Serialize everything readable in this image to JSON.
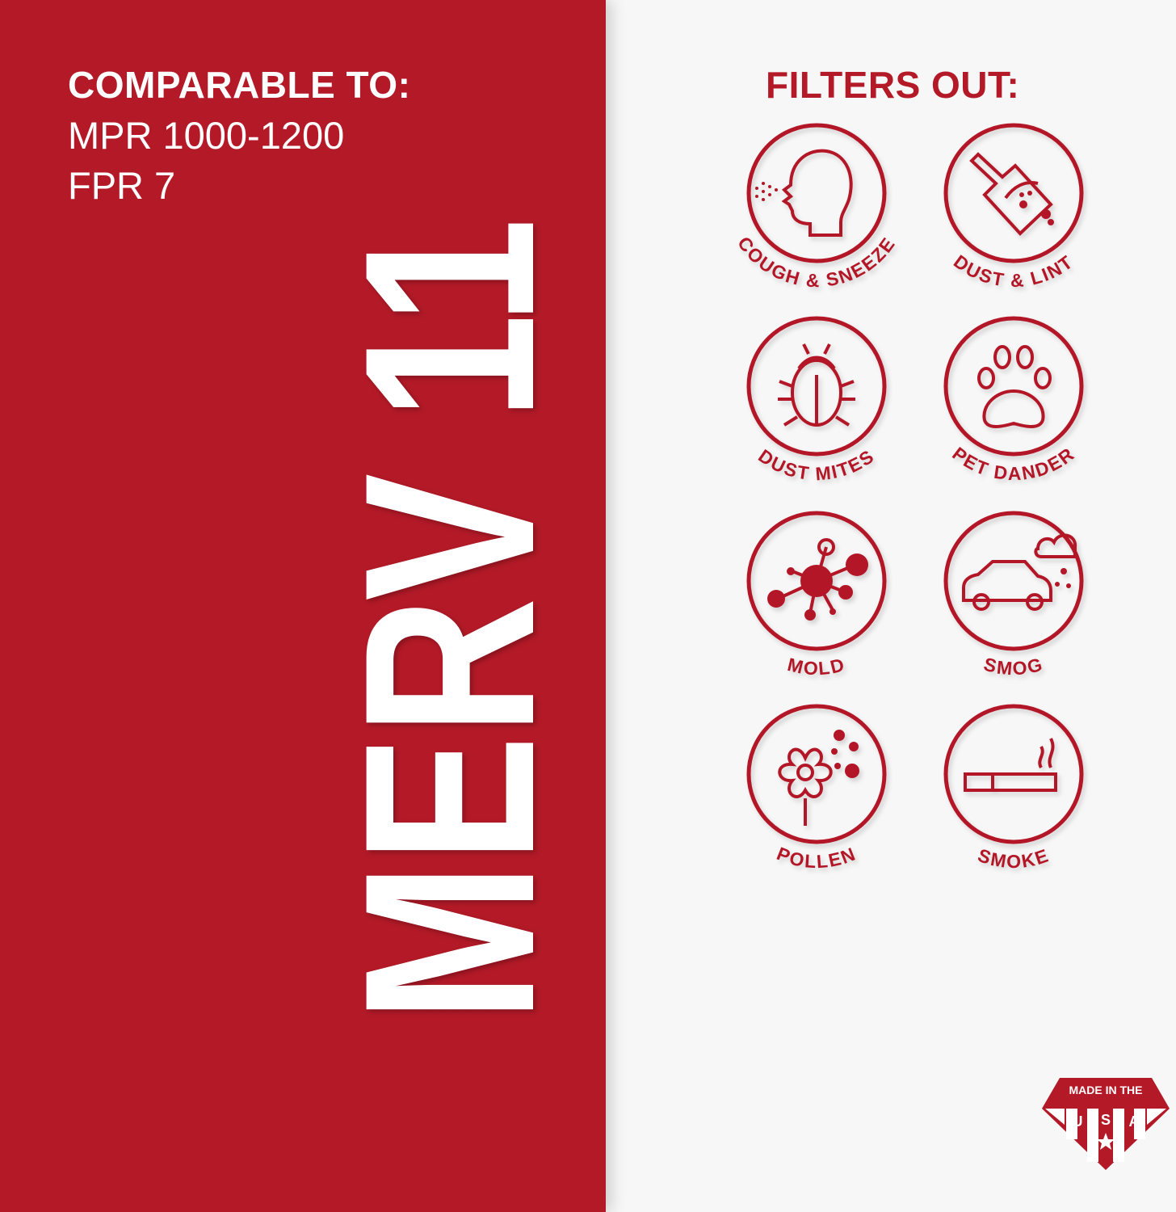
{
  "comparable": {
    "title": "COMPARABLE TO:",
    "lines": [
      "MPR 1000-1200",
      "FPR 7"
    ]
  },
  "rating": "MERV 11",
  "filters": {
    "title": "FILTERS OUT:",
    "items": [
      {
        "label": "COUGH & SNEEZE",
        "icon": "head-sneeze-icon"
      },
      {
        "label": "DUST & LINT",
        "icon": "dustpan-icon"
      },
      {
        "label": "DUST MITES",
        "icon": "bug-icon"
      },
      {
        "label": "PET DANDER",
        "icon": "paw-icon"
      },
      {
        "label": "MOLD",
        "icon": "mold-spore-icon"
      },
      {
        "label": "SMOG",
        "icon": "car-smog-icon"
      },
      {
        "label": "POLLEN",
        "icon": "flower-icon"
      },
      {
        "label": "SMOKE",
        "icon": "cigarette-icon"
      }
    ]
  },
  "badge": {
    "top": "MADE IN THE",
    "letters": [
      "U",
      "S",
      "A"
    ]
  },
  "colors": {
    "brand_red": "#b31927",
    "background": "#f7f7f7",
    "text_light": "#ffffff"
  }
}
